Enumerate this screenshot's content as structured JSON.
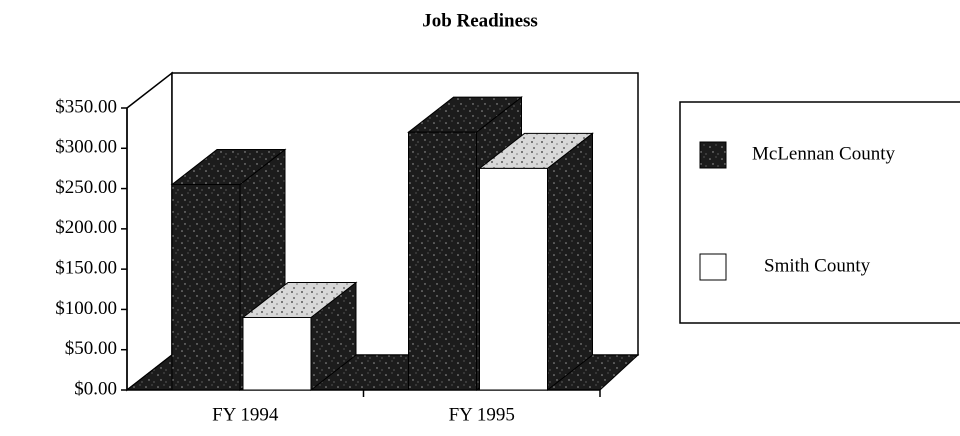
{
  "chart_data": {
    "type": "bar3d",
    "title": "Job Readiness",
    "categories": [
      "FY 1994",
      "FY 1995"
    ],
    "series": [
      {
        "name": "McLennan County",
        "color": "#1c1c1c",
        "values": [
          255,
          320
        ]
      },
      {
        "name": "Smith County",
        "color": "#ffffff",
        "values": [
          90,
          275
        ]
      }
    ],
    "ylim": [
      0,
      350
    ],
    "yticks": [
      {
        "value": 0,
        "label": "$0.00"
      },
      {
        "value": 50,
        "label": "$50.00"
      },
      {
        "value": 100,
        "label": "$100.00"
      },
      {
        "value": 150,
        "label": "$150.00"
      },
      {
        "value": 200,
        "label": "$200.00"
      },
      {
        "value": 250,
        "label": "$250.00"
      },
      {
        "value": 300,
        "label": "$300.00"
      },
      {
        "value": 350,
        "label": "$350.00"
      }
    ],
    "grid": false,
    "legend": "right"
  }
}
